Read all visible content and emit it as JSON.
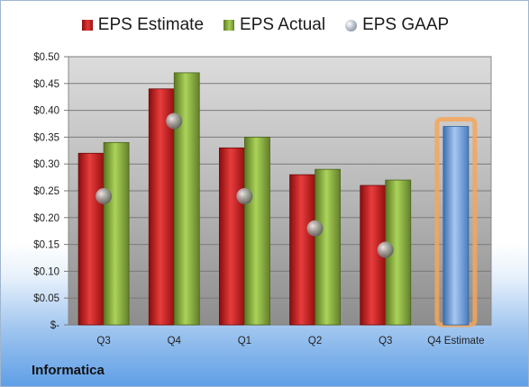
{
  "company": "Informatica",
  "chart_data": {
    "type": "bar",
    "categories": [
      "Q3",
      "Q4",
      "Q1",
      "Q2",
      "Q3",
      "Q4 Estimate"
    ],
    "series": [
      {
        "name": "EPS Estimate",
        "values": [
          0.32,
          0.44,
          0.33,
          0.28,
          0.26,
          0.37
        ]
      },
      {
        "name": "EPS Actual",
        "values": [
          0.34,
          0.47,
          0.35,
          0.29,
          0.27,
          null
        ]
      },
      {
        "name": "EPS GAAP",
        "values": [
          0.24,
          0.38,
          0.24,
          0.18,
          0.14,
          null
        ]
      }
    ],
    "ylim": [
      0,
      0.5
    ],
    "yticks": [
      "$-",
      "$0.05",
      "$0.10",
      "$0.15",
      "$0.20",
      "$0.25",
      "$0.30",
      "$0.35",
      "$0.40",
      "$0.45",
      "$0.50"
    ],
    "legend_position": "top",
    "grid": true,
    "colors": {
      "estimate": "#c0282d",
      "actual": "#8cb043",
      "gaap": "#9aa4b0",
      "future_estimate": "#6f9fd8",
      "highlight": "#f4a65a"
    }
  }
}
